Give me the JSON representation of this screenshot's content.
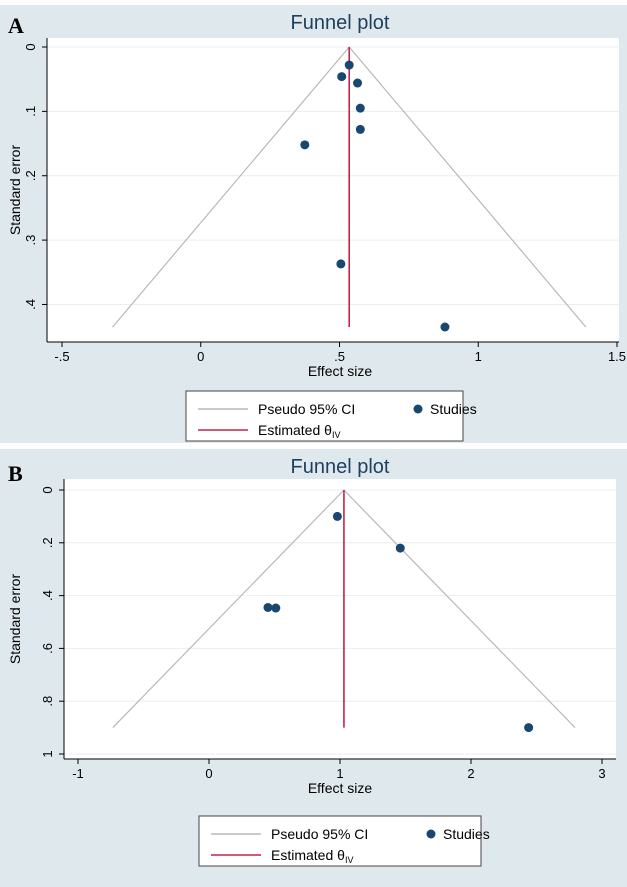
{
  "chart_data": [
    {
      "panel_label": "A",
      "type": "scatter",
      "title": "Funnel plot",
      "xlabel": "Effect size",
      "ylabel": "Standard error",
      "xlim": [
        -0.5,
        1.5
      ],
      "ylim": [
        0,
        0.435
      ],
      "y_reversed": true,
      "x_ticks": [
        {
          "v": -0.5,
          "label": "-.5"
        },
        {
          "v": 0,
          "label": "0"
        },
        {
          "v": 0.5,
          "label": ".5"
        },
        {
          "v": 1,
          "label": "1"
        },
        {
          "v": 1.5,
          "label": "1.5"
        }
      ],
      "y_ticks": [
        {
          "v": 0,
          "label": "0"
        },
        {
          "v": 0.1,
          "label": ".1"
        },
        {
          "v": 0.2,
          "label": ".2"
        },
        {
          "v": 0.3,
          "label": ".3"
        },
        {
          "v": 0.4,
          "label": ".4"
        }
      ],
      "grid": true,
      "estimate": 0.535,
      "ci_max_se": 0.435,
      "studies": [
        {
          "x": 0.535,
          "y": 0.028
        },
        {
          "x": 0.508,
          "y": 0.046
        },
        {
          "x": 0.565,
          "y": 0.056
        },
        {
          "x": 0.575,
          "y": 0.095
        },
        {
          "x": 0.575,
          "y": 0.128
        },
        {
          "x": 0.375,
          "y": 0.152
        },
        {
          "x": 0.505,
          "y": 0.337
        },
        {
          "x": 0.88,
          "y": 0.435
        }
      ],
      "legend": {
        "ci_label": "Pseudo 95% CI",
        "studies_label": "Studies",
        "estimate_label": "Estimated θ",
        "estimate_sub": "IV",
        "position": "bottom"
      },
      "colors": {
        "background": "#dfe8ed",
        "plot_bg": "#ffffff",
        "ci": "#b8b8b8",
        "estimate": "#c0244b",
        "points": "#1a476f",
        "title": "#1e3f5f"
      }
    },
    {
      "panel_label": "B",
      "type": "scatter",
      "title": "Funnel plot",
      "xlabel": "Effect size",
      "ylabel": "Standard error",
      "xlim": [
        -1,
        3
      ],
      "ylim": [
        0,
        1
      ],
      "y_reversed": true,
      "x_ticks": [
        {
          "v": -1,
          "label": "-1"
        },
        {
          "v": 0,
          "label": "0"
        },
        {
          "v": 1,
          "label": "1"
        },
        {
          "v": 2,
          "label": "2"
        },
        {
          "v": 3,
          "label": "3"
        }
      ],
      "y_ticks": [
        {
          "v": 0,
          "label": "0"
        },
        {
          "v": 0.2,
          "label": ".2"
        },
        {
          "v": 0.4,
          "label": ".4"
        },
        {
          "v": 0.6,
          "label": ".6"
        },
        {
          "v": 0.8,
          "label": ".8"
        },
        {
          "v": 1,
          "label": "1"
        }
      ],
      "grid": true,
      "estimate": 1.03,
      "ci_max_se": 0.9,
      "studies": [
        {
          "x": 0.98,
          "y": 0.1
        },
        {
          "x": 1.46,
          "y": 0.22
        },
        {
          "x": 0.45,
          "y": 0.445
        },
        {
          "x": 0.51,
          "y": 0.447
        },
        {
          "x": 2.44,
          "y": 0.9
        }
      ],
      "legend": {
        "ci_label": "Pseudo 95% CI",
        "studies_label": "Studies",
        "estimate_label": "Estimated θ",
        "estimate_sub": "IV",
        "position": "bottom"
      },
      "colors": {
        "background": "#dfe8ed",
        "plot_bg": "#ffffff",
        "ci": "#b8b8b8",
        "estimate": "#c0244b",
        "points": "#1a476f",
        "title": "#1e3f5f"
      }
    }
  ]
}
